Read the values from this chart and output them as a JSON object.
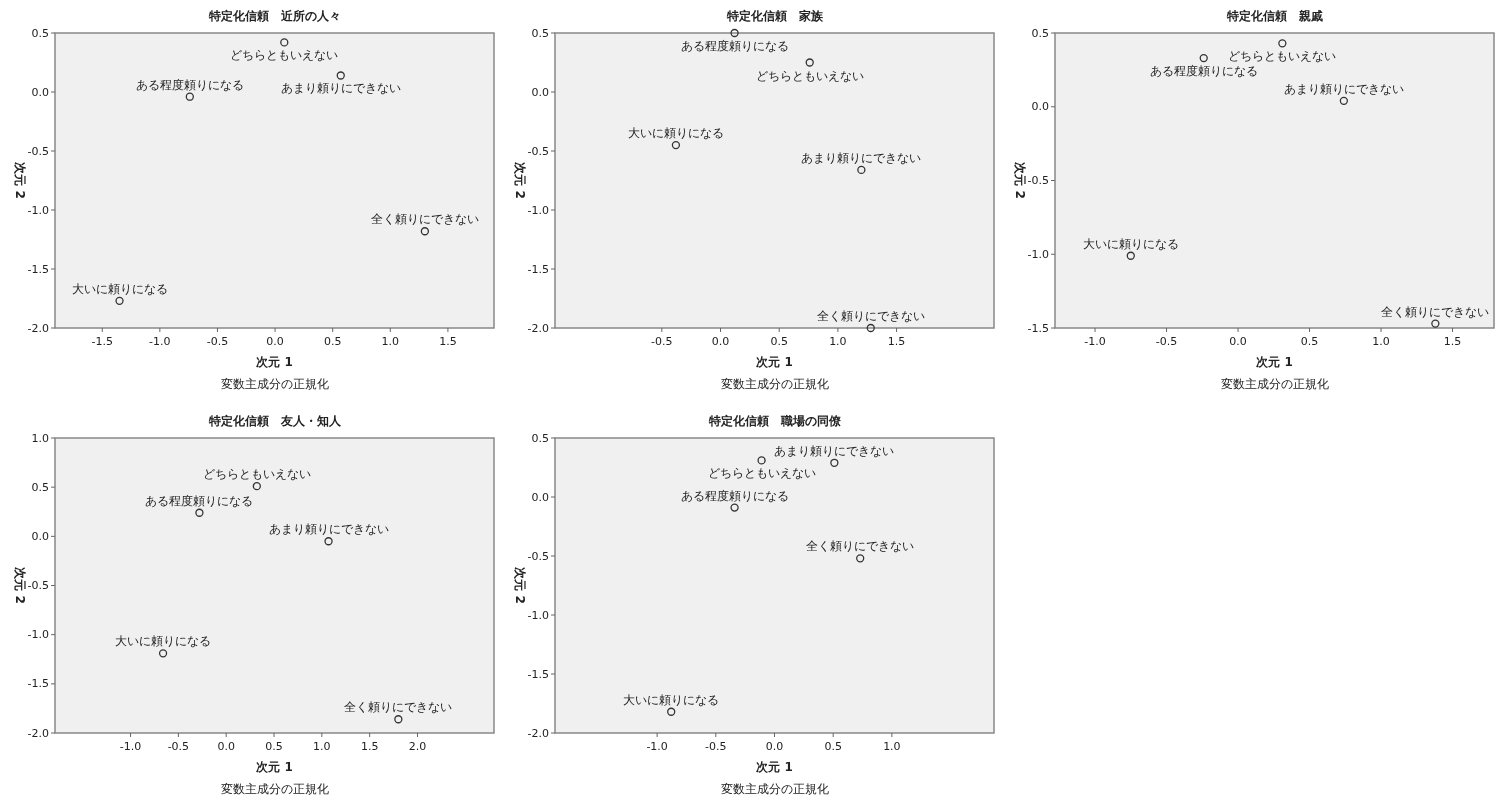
{
  "chart_data": [
    {
      "type": "scatter",
      "title": "特定化信頼　近所の人々",
      "xlabel": "次元 1",
      "ylabel": "次元 2",
      "marker": "circle",
      "xlim": [
        -1.91,
        1.9
      ],
      "ylim": [
        -2,
        0.5
      ],
      "xticks": [
        -1.5,
        {
          "value": -1,
          "label": "-1.0"
        },
        -0.5,
        {
          "value": 0,
          "label": "0.0"
        },
        0.5,
        {
          "value": 1,
          "label": "1.0"
        },
        1.5
      ],
      "yticks": [
        0.5,
        {
          "value": 0,
          "label": "0.0"
        },
        -0.5,
        {
          "value": -1,
          "label": "-1.0"
        },
        -1.5,
        {
          "value": -2,
          "label": "-2.0"
        }
      ],
      "series": [
        {
          "color": "#333333",
          "x": [
            0.08,
            0.57,
            -0.74,
            1.3,
            -1.35
          ],
          "values": [
            0.42,
            0.14,
            -0.04,
            -1.18,
            -1.77
          ]
        }
      ],
      "annotations": [
        {
          "text": "どちらともいえない",
          "x": 0.08,
          "y": 0.42
        },
        {
          "text": "あまり頼りにできない",
          "x": 0.57,
          "y": 0.14
        },
        {
          "text": "ある程度頼りになる",
          "x": -0.74,
          "y": -0.04
        },
        {
          "text": "全く頼りにできない",
          "x": 1.3,
          "y": -1.18
        },
        {
          "text": "大いに頼りになる",
          "x": -1.35,
          "y": -1.77
        },
        "変数主成分の正規化"
      ]
    },
    {
      "type": "scatter",
      "title": "特定化信頼　家族",
      "xlabel": "次元 1",
      "ylabel": "次元 2",
      "marker": "circle",
      "xlim": [
        -1.41,
        2.33
      ],
      "ylim": [
        -2,
        0.5
      ],
      "xticks": [
        -0.5,
        {
          "value": 0,
          "label": "0.0"
        },
        0.5,
        {
          "value": 1,
          "label": "1.0"
        },
        1.5
      ],
      "yticks": [
        0.5,
        {
          "value": 0,
          "label": "0.0"
        },
        -0.5,
        {
          "value": -1,
          "label": "-1.0"
        },
        -1.5,
        {
          "value": -2,
          "label": "-2.0"
        }
      ],
      "series": [
        {
          "color": "#333333",
          "x": [
            0.12,
            0.76,
            -0.38,
            1.2,
            1.28
          ],
          "values": [
            0.5,
            0.25,
            -0.45,
            -0.66,
            -2.0
          ]
        }
      ],
      "annotations": [
        {
          "text": "ある程度頼りになる",
          "x": 0.12,
          "y": 0.5
        },
        {
          "text": "どちらともいえない",
          "x": 0.76,
          "y": 0.25
        },
        {
          "text": "大いに頼りになる",
          "x": -0.38,
          "y": -0.45
        },
        {
          "text": "あまり頼りにできない",
          "x": 1.2,
          "y": -0.66
        },
        {
          "text": "全く頼りにできない",
          "x": 1.28,
          "y": -2.0
        },
        "変数主成分の正規化"
      ]
    },
    {
      "type": "scatter",
      "title": "特定化信頼　親戚",
      "xlabel": "次元 1",
      "ylabel": "次元 2",
      "marker": "circle",
      "xlim": [
        -1.28,
        1.79
      ],
      "ylim": [
        -1.5,
        0.5
      ],
      "xticks": [
        {
          "value": -1,
          "label": "-1.0"
        },
        -0.5,
        {
          "value": 0,
          "label": "0.0"
        },
        0.5,
        {
          "value": 1,
          "label": "1.0"
        },
        1.5
      ],
      "yticks": [
        0.5,
        {
          "value": 0,
          "label": "0.0"
        },
        -0.5,
        {
          "value": -1,
          "label": "-1.0"
        },
        -1.5
      ],
      "series": [
        {
          "color": "#333333",
          "x": [
            -0.24,
            0.31,
            0.74,
            -0.75,
            1.38
          ],
          "values": [
            0.33,
            0.43,
            0.04,
            -1.01,
            -1.47
          ]
        }
      ],
      "annotations": [
        {
          "text": "ある程度頼りになる",
          "x": -0.24,
          "y": 0.33
        },
        {
          "text": "どちらともいえない",
          "x": 0.31,
          "y": 0.43
        },
        {
          "text": "あまり頼りにできない",
          "x": 0.74,
          "y": 0.04
        },
        {
          "text": "大いに頼りになる",
          "x": -0.75,
          "y": -1.01
        },
        {
          "text": "全く頼りにできない",
          "x": 1.38,
          "y": -1.47
        },
        "変数主成分の正規化"
      ]
    },
    {
      "type": "scatter",
      "title": "特定化信頼　友人・知人",
      "xlabel": "次元 1",
      "ylabel": "次元 2",
      "marker": "circle",
      "xlim": [
        -1.79,
        2.8
      ],
      "ylim": [
        -2,
        1
      ],
      "xticks": [
        {
          "value": -1,
          "label": "-1.0"
        },
        -0.5,
        {
          "value": 0,
          "label": "0.0"
        },
        0.5,
        {
          "value": 1,
          "label": "1.0"
        },
        1.5,
        {
          "value": 2,
          "label": "2.0"
        }
      ],
      "yticks": [
        {
          "value": 1,
          "label": "1.0"
        },
        0.5,
        {
          "value": 0,
          "label": "0.0"
        },
        -0.5,
        {
          "value": -1,
          "label": "-1.0"
        },
        -1.5,
        {
          "value": -2,
          "label": "-2.0"
        }
      ],
      "series": [
        {
          "color": "#333333",
          "x": [
            0.32,
            -0.28,
            1.07,
            -0.66,
            1.8
          ],
          "values": [
            0.51,
            0.24,
            -0.05,
            -1.19,
            -1.86
          ]
        }
      ],
      "annotations": [
        {
          "text": "どちらともいえない",
          "x": 0.32,
          "y": 0.51
        },
        {
          "text": "ある程度頼りになる",
          "x": -0.28,
          "y": 0.24
        },
        {
          "text": "あまり頼りにできない",
          "x": 1.07,
          "y": -0.05
        },
        {
          "text": "大いに頼りになる",
          "x": -0.66,
          "y": -1.19
        },
        {
          "text": "全く頼りにできない",
          "x": 1.8,
          "y": -1.86
        },
        "変数主成分の正規化"
      ]
    },
    {
      "type": "scatter",
      "title": "特定化信頼　職場の同僚",
      "xlabel": "次元 1",
      "ylabel": "次元 2",
      "marker": "circle",
      "xlim": [
        -1.87,
        1.87
      ],
      "ylim": [
        -2,
        0.5
      ],
      "xticks": [
        {
          "value": -1,
          "label": "-1.0"
        },
        -0.5,
        {
          "value": 0,
          "label": "0.0"
        },
        0.5,
        {
          "value": 1,
          "label": "1.0"
        }
      ],
      "yticks": [
        0.5,
        {
          "value": 0,
          "label": "0.0"
        },
        -0.5,
        {
          "value": -1,
          "label": "-1.0"
        },
        -1.5,
        {
          "value": -2,
          "label": "-2.0"
        }
      ],
      "series": [
        {
          "color": "#333333",
          "x": [
            -0.11,
            0.51,
            -0.34,
            0.73,
            -0.88
          ],
          "values": [
            0.31,
            0.29,
            -0.09,
            -0.52,
            -1.82
          ]
        }
      ],
      "annotations": [
        {
          "text": "どちらともいえない",
          "x": -0.11,
          "y": 0.31
        },
        {
          "text": "あまり頼りにできない",
          "x": 0.51,
          "y": 0.29
        },
        {
          "text": "ある程度頼りになる",
          "x": -0.34,
          "y": -0.09
        },
        {
          "text": "全く頼りにできない",
          "x": 0.73,
          "y": -0.52
        },
        {
          "text": "大いに頼りになる",
          "x": -0.88,
          "y": -1.82
        },
        "変数主成分の正規化"
      ]
    }
  ]
}
